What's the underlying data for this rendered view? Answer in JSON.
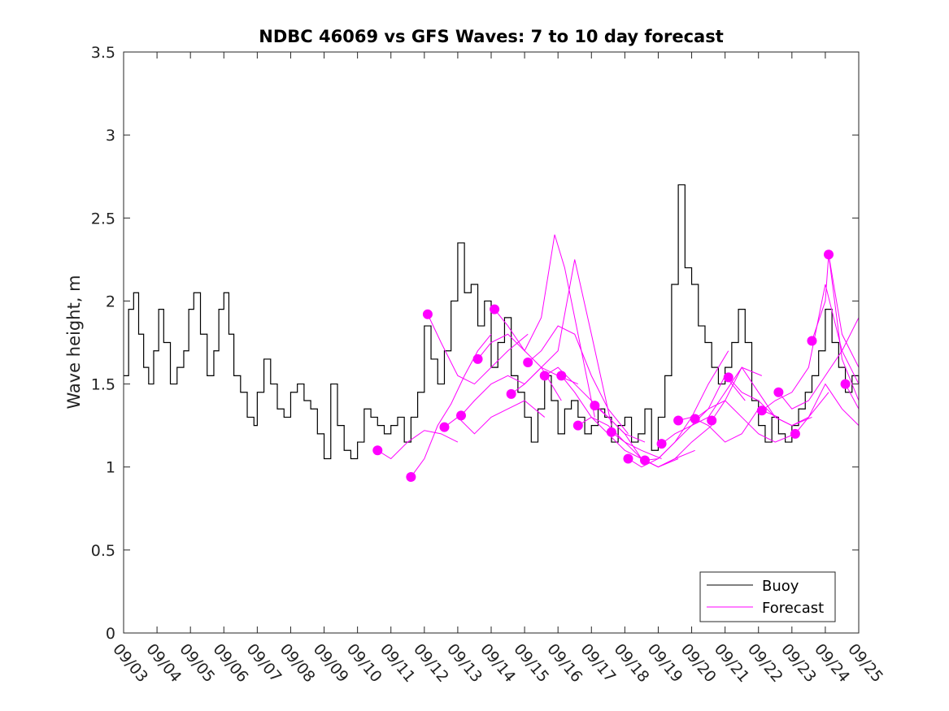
{
  "chart_data": {
    "type": "line",
    "title": "NDBC 46069 vs GFS Waves: 7 to 10 day forecast",
    "xlabel": "",
    "ylabel": "Wave height, m",
    "x_unit": "days since 09/03",
    "xlim": [
      0,
      22
    ],
    "ylim": [
      0,
      3.5
    ],
    "yticks": [
      0,
      0.5,
      1,
      1.5,
      2,
      2.5,
      3,
      3.5
    ],
    "ytick_labels": [
      "0",
      "0.5",
      "1",
      "1.5",
      "2",
      "2.5",
      "3",
      "3.5"
    ],
    "xticks": [
      0,
      1,
      2,
      3,
      4,
      5,
      6,
      7,
      8,
      9,
      10,
      11,
      12,
      13,
      14,
      15,
      16,
      17,
      18,
      19,
      20,
      21,
      22
    ],
    "xtick_labels": [
      "09/03",
      "09/04",
      "09/05",
      "09/06",
      "09/07",
      "09/08",
      "09/09",
      "09/10",
      "09/11",
      "09/12",
      "09/13",
      "09/14",
      "09/15",
      "09/16",
      "09/17",
      "09/18",
      "09/19",
      "09/20",
      "09/21",
      "09/22",
      "09/23",
      "09/24",
      "09/25"
    ],
    "legend": {
      "position": "bottom-right",
      "entries": [
        {
          "label": "Buoy",
          "color": "#000000"
        },
        {
          "label": "Forecast",
          "color": "#ff00ff"
        }
      ]
    },
    "series": [
      {
        "name": "Buoy",
        "color": "#000000",
        "x": [
          0,
          0.15,
          0.3,
          0.45,
          0.6,
          0.75,
          0.9,
          1.05,
          1.2,
          1.4,
          1.6,
          1.8,
          1.95,
          2.1,
          2.3,
          2.5,
          2.7,
          2.85,
          3.0,
          3.15,
          3.3,
          3.5,
          3.7,
          3.9,
          4.0,
          4.2,
          4.4,
          4.6,
          4.8,
          5.0,
          5.2,
          5.4,
          5.6,
          5.8,
          6.0,
          6.2,
          6.4,
          6.6,
          6.8,
          7.0,
          7.2,
          7.4,
          7.6,
          7.8,
          8.0,
          8.2,
          8.4,
          8.6,
          8.8,
          9.0,
          9.2,
          9.4,
          9.6,
          9.8,
          10.0,
          10.2,
          10.4,
          10.6,
          10.8,
          11.0,
          11.2,
          11.4,
          11.6,
          11.8,
          12.0,
          12.2,
          12.4,
          12.6,
          12.8,
          13.0,
          13.2,
          13.4,
          13.6,
          13.8,
          14.0,
          14.2,
          14.4,
          14.6,
          14.8,
          15.0,
          15.2,
          15.4,
          15.6,
          15.8,
          16.0,
          16.2,
          16.4,
          16.6,
          16.8,
          17.0,
          17.2,
          17.4,
          17.6,
          17.8,
          18.0,
          18.2,
          18.4,
          18.6,
          18.8,
          19.0,
          19.2,
          19.4,
          19.6,
          19.8,
          20.0,
          20.2,
          20.4,
          20.6,
          20.8,
          21.0,
          21.2,
          21.4,
          21.6,
          21.8,
          22.0
        ],
        "values": [
          1.55,
          1.95,
          2.05,
          1.8,
          1.6,
          1.5,
          1.7,
          1.95,
          1.75,
          1.5,
          1.6,
          1.7,
          1.95,
          2.05,
          1.8,
          1.55,
          1.7,
          1.95,
          2.05,
          1.8,
          1.55,
          1.45,
          1.3,
          1.25,
          1.45,
          1.65,
          1.5,
          1.35,
          1.3,
          1.45,
          1.5,
          1.4,
          1.35,
          1.2,
          1.05,
          1.5,
          1.25,
          1.1,
          1.05,
          1.15,
          1.35,
          1.3,
          1.25,
          1.2,
          1.25,
          1.3,
          1.15,
          1.3,
          1.45,
          1.85,
          1.65,
          1.5,
          1.7,
          2.0,
          2.35,
          2.05,
          2.1,
          1.85,
          2.0,
          1.6,
          1.75,
          1.9,
          1.55,
          1.45,
          1.3,
          1.15,
          1.35,
          1.55,
          1.4,
          1.2,
          1.35,
          1.4,
          1.3,
          1.2,
          1.25,
          1.35,
          1.3,
          1.15,
          1.25,
          1.3,
          1.15,
          1.2,
          1.35,
          1.1,
          1.3,
          1.55,
          2.1,
          2.7,
          2.2,
          2.1,
          1.85,
          1.75,
          1.6,
          1.5,
          1.6,
          1.75,
          1.95,
          1.75,
          1.4,
          1.25,
          1.15,
          1.3,
          1.2,
          1.15,
          1.25,
          1.35,
          1.45,
          1.55,
          1.7,
          1.95,
          1.75,
          1.6,
          1.45,
          1.55,
          1.5
        ]
      },
      {
        "name": "Forecast",
        "color": "#ff00ff",
        "runs": [
          {
            "x": [
              7.6,
              8.0,
              8.5,
              9.0,
              9.5,
              10.0
            ],
            "values": [
              1.1,
              1.05,
              1.15,
              1.22,
              1.2,
              1.15
            ]
          },
          {
            "x": [
              8.6,
              9.0,
              9.4,
              9.8,
              10.2,
              10.6,
              11.0
            ],
            "values": [
              0.94,
              1.05,
              1.25,
              1.38,
              1.55,
              1.7,
              1.8
            ]
          },
          {
            "x": [
              9.1,
              9.5,
              10.0,
              10.5,
              11.0,
              11.5,
              12.1
            ],
            "values": [
              1.92,
              1.75,
              1.55,
              1.5,
              1.6,
              1.7,
              1.8
            ]
          },
          {
            "x": [
              9.6,
              10.0,
              10.5,
              11.0,
              11.5,
              12.0,
              12.6
            ],
            "values": [
              1.24,
              1.3,
              1.2,
              1.3,
              1.35,
              1.4,
              1.3
            ]
          },
          {
            "x": [
              10.1,
              10.5,
              11.0,
              11.5,
              12.0,
              12.5,
              13.1
            ],
            "values": [
              1.31,
              1.4,
              1.5,
              1.55,
              1.5,
              1.6,
              1.4
            ]
          },
          {
            "x": [
              10.6,
              11.0,
              11.5,
              12.0,
              12.5,
              13.0,
              13.6
            ],
            "values": [
              1.65,
              1.75,
              1.8,
              1.7,
              1.6,
              1.55,
              1.5
            ]
          },
          {
            "x": [
              11.1,
              11.5,
              12.0,
              12.5,
              12.9,
              13.2,
              14.1
            ],
            "values": [
              1.95,
              1.85,
              1.7,
              1.9,
              2.4,
              2.2,
              1.3
            ]
          },
          {
            "x": [
              11.6,
              12.0,
              12.5,
              13.0,
              13.5,
              14.0,
              14.6
            ],
            "values": [
              1.44,
              1.5,
              1.6,
              1.7,
              2.25,
              1.8,
              1.25
            ]
          },
          {
            "x": [
              12.1,
              12.5,
              13.0,
              13.5,
              14.0,
              14.5,
              15.1
            ],
            "values": [
              1.63,
              1.7,
              1.85,
              1.8,
              1.55,
              1.35,
              1.2
            ]
          },
          {
            "x": [
              12.6,
              13.0,
              13.5,
              14.0,
              14.5,
              15.0,
              15.6
            ],
            "values": [
              1.55,
              1.6,
              1.5,
              1.4,
              1.3,
              1.2,
              1.15
            ]
          },
          {
            "x": [
              13.1,
              13.5,
              14.0,
              14.5,
              15.0,
              15.5,
              16.1
            ],
            "values": [
              1.55,
              1.45,
              1.3,
              1.25,
              1.15,
              1.1,
              1.05
            ]
          },
          {
            "x": [
              13.6,
              14.0,
              14.5,
              15.0,
              15.5,
              16.0,
              16.6
            ],
            "values": [
              1.25,
              1.3,
              1.2,
              1.1,
              1.05,
              1.0,
              1.05
            ]
          },
          {
            "x": [
              14.1,
              14.5,
              15.0,
              15.5,
              16.0,
              16.5,
              17.1
            ],
            "values": [
              1.37,
              1.3,
              1.2,
              1.05,
              1.0,
              1.05,
              1.1
            ]
          },
          {
            "x": [
              14.6,
              15.0,
              15.5,
              16.0,
              16.5,
              17.0,
              17.6
            ],
            "values": [
              1.21,
              1.15,
              1.05,
              1.0,
              1.05,
              1.15,
              1.25
            ]
          },
          {
            "x": [
              15.1,
              15.5,
              16.0,
              16.5,
              17.0,
              17.5,
              18.1
            ],
            "values": [
              1.05,
              1.0,
              1.05,
              1.15,
              1.3,
              1.5,
              1.7
            ]
          },
          {
            "x": [
              15.6,
              16.0,
              16.5,
              17.0,
              17.5,
              18.0,
              18.6
            ],
            "values": [
              1.04,
              1.05,
              1.15,
              1.25,
              1.35,
              1.55,
              1.4
            ]
          },
          {
            "x": [
              16.1,
              16.5,
              17.0,
              17.5,
              18.0,
              18.5,
              19.1
            ],
            "values": [
              1.14,
              1.2,
              1.25,
              1.3,
              1.45,
              1.6,
              1.55
            ]
          },
          {
            "x": [
              16.6,
              17.0,
              17.5,
              18.0,
              18.5,
              19.0,
              19.6
            ],
            "values": [
              1.28,
              1.3,
              1.25,
              1.15,
              1.2,
              1.35,
              1.3
            ]
          },
          {
            "x": [
              17.1,
              17.5,
              18.0,
              18.5,
              19.0,
              19.5,
              20.1
            ],
            "values": [
              1.29,
              1.35,
              1.4,
              1.3,
              1.2,
              1.15,
              1.2
            ]
          },
          {
            "x": [
              17.6,
              18.0,
              18.5,
              19.0,
              19.5,
              20.0,
              20.6
            ],
            "values": [
              1.28,
              1.4,
              1.6,
              1.45,
              1.3,
              1.25,
              1.3
            ]
          },
          {
            "x": [
              18.1,
              18.5,
              19.0,
              19.5,
              20.0,
              20.5,
              21.1
            ],
            "values": [
              1.54,
              1.45,
              1.4,
              1.3,
              1.25,
              1.3,
              1.45
            ]
          },
          {
            "x": [
              19.1,
              19.5,
              20.0,
              20.5,
              21.0,
              21.5,
              22.0
            ],
            "values": [
              1.34,
              1.4,
              1.45,
              1.6,
              2.1,
              1.7,
              1.5
            ]
          },
          {
            "x": [
              19.6,
              20.0,
              20.5,
              21.0,
              21.5,
              22.0
            ],
            "values": [
              1.45,
              1.35,
              1.4,
              1.55,
              1.7,
              1.9
            ]
          },
          {
            "x": [
              20.1,
              20.5,
              21.0,
              21.5,
              22.0
            ],
            "values": [
              1.2,
              1.3,
              1.5,
              1.35,
              1.25
            ]
          },
          {
            "x": [
              20.6,
              21.0,
              21.1,
              21.5,
              22.0
            ],
            "values": [
              1.76,
              2.0,
              2.28,
              1.65,
              1.4
            ]
          },
          {
            "x": [
              21.1,
              21.5,
              22.0
            ],
            "values": [
              2.28,
              1.8,
              1.6
            ]
          },
          {
            "x": [
              21.6,
              22.0
            ],
            "values": [
              1.5,
              1.35
            ]
          }
        ],
        "markers": {
          "x": [
            7.6,
            8.6,
            9.1,
            9.6,
            10.1,
            10.6,
            11.1,
            11.6,
            12.1,
            12.6,
            13.1,
            13.6,
            14.1,
            14.6,
            15.1,
            15.6,
            16.1,
            16.6,
            17.1,
            17.6,
            18.1,
            19.1,
            19.6,
            20.1,
            20.6,
            21.1,
            21.6
          ],
          "values": [
            1.1,
            0.94,
            1.92,
            1.24,
            1.31,
            1.65,
            1.95,
            1.44,
            1.63,
            1.55,
            1.55,
            1.25,
            1.37,
            1.21,
            1.05,
            1.04,
            1.14,
            1.28,
            1.29,
            1.28,
            1.54,
            1.34,
            1.45,
            1.2,
            1.76,
            2.28,
            1.5
          ]
        }
      }
    ]
  }
}
